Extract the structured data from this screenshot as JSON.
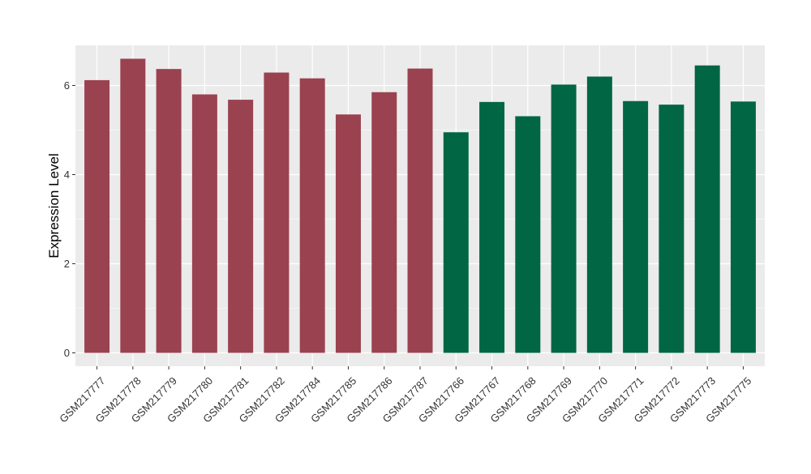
{
  "chart_data": {
    "type": "bar",
    "ylabel": "Expression Level",
    "ylim": [
      -0.3,
      6.9
    ],
    "yticks": [
      0,
      2,
      4,
      6
    ],
    "grid": true,
    "categories": [
      "GSM217777",
      "GSM217778",
      "GSM217779",
      "GSM217780",
      "GSM217781",
      "GSM217782",
      "GSM217784",
      "GSM217785",
      "GSM217786",
      "GSM217787",
      "GSM217766",
      "GSM217767",
      "GSM217768",
      "GSM217769",
      "GSM217770",
      "GSM217771",
      "GSM217772",
      "GSM217773",
      "GSM217775"
    ],
    "values": [
      6.12,
      6.6,
      6.37,
      5.8,
      5.68,
      6.29,
      6.16,
      5.35,
      5.85,
      6.38,
      4.95,
      5.63,
      5.31,
      6.02,
      6.2,
      5.65,
      5.57,
      6.45,
      5.64
    ],
    "group_colors": [
      "#9a4250",
      "#9a4250",
      "#9a4250",
      "#9a4250",
      "#9a4250",
      "#9a4250",
      "#9a4250",
      "#9a4250",
      "#9a4250",
      "#9a4250",
      "#006644",
      "#006644",
      "#006644",
      "#006644",
      "#006644",
      "#006644",
      "#006644",
      "#006644",
      "#006644"
    ]
  }
}
